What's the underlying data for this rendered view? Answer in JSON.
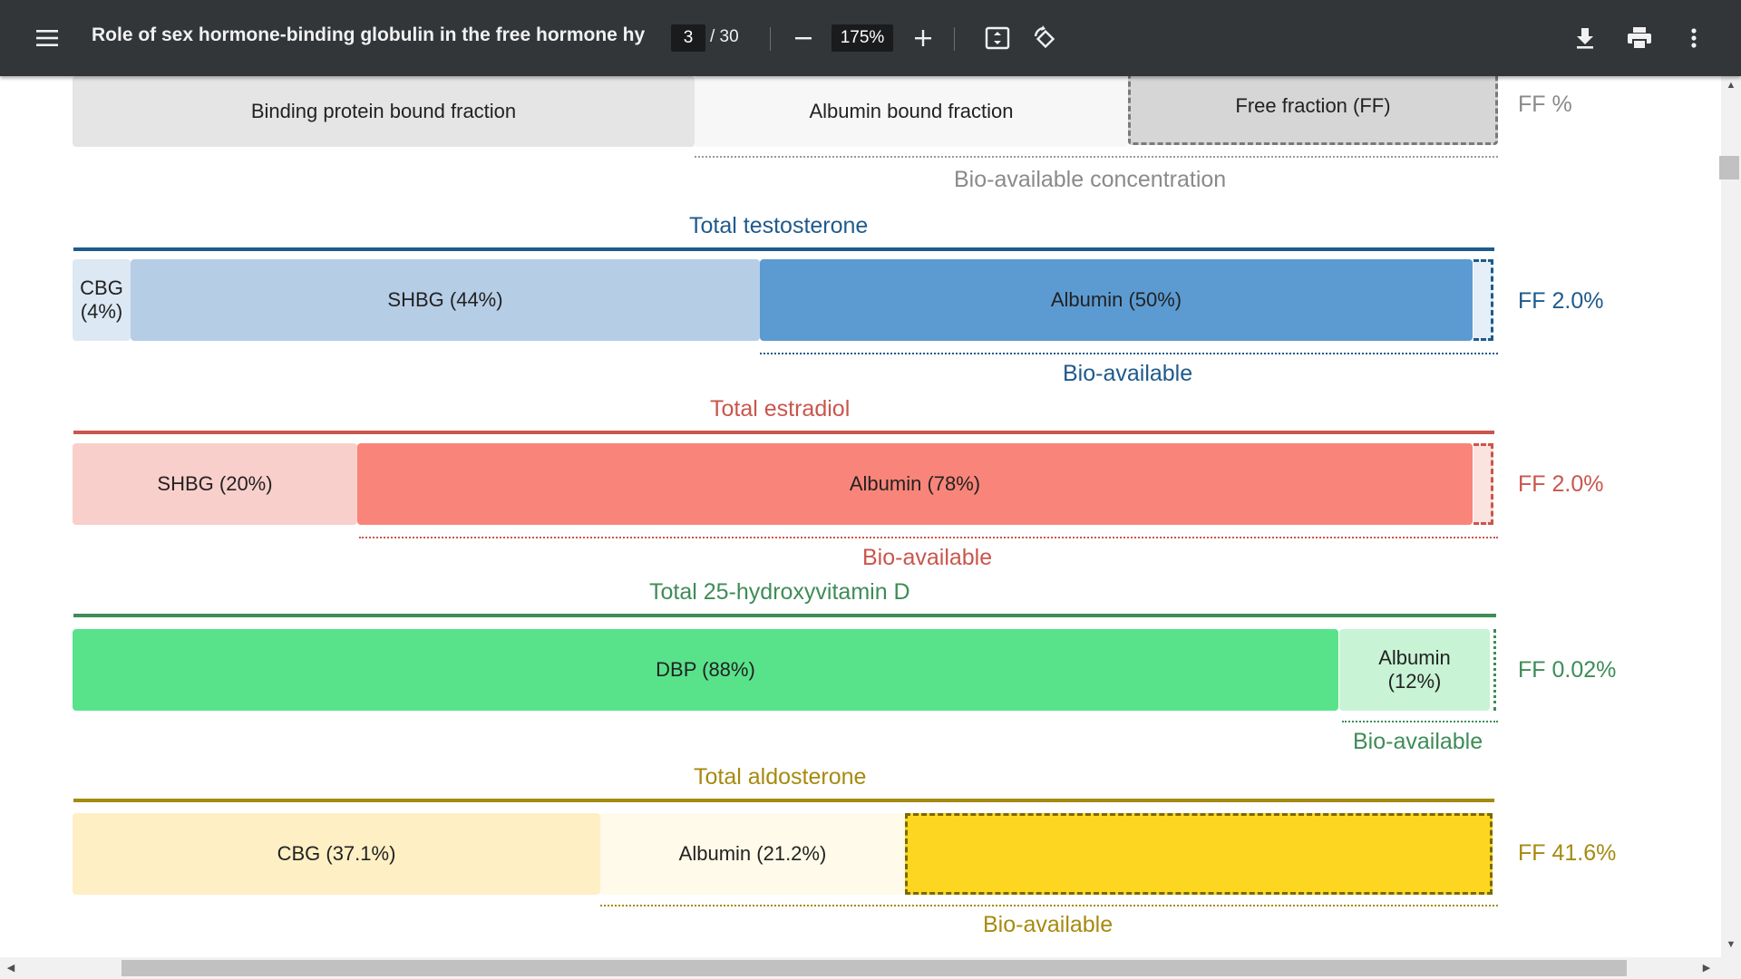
{
  "toolbar": {
    "title": "Role of sex hormone-binding globulin in the free hormone hypo...",
    "page_current": "3",
    "page_total": "/ 30",
    "zoom": "175%",
    "icons": {
      "menu": "menu-icon",
      "zoom_out": "minus-icon",
      "zoom_in": "plus-icon",
      "fit": "fit-page-icon",
      "rotate": "rotate-icon",
      "download": "download-icon",
      "print": "print-icon",
      "more": "more-vert-icon"
    }
  },
  "legend": {
    "binding_protein": "Binding protein bound fraction",
    "albumin": "Albumin bound fraction",
    "free": "Free fraction (FF)",
    "ff_label": "FF %",
    "bioavailable_conc": "Bio-available concentration"
  },
  "testosterone": {
    "title": "Total testosterone",
    "cbg": "CBG\n(4%)",
    "shbg": "SHBG (44%)",
    "albumin": "Albumin (50%)",
    "ff": "FF 2.0%",
    "bio": "Bio-available",
    "color": "#1f5a8c"
  },
  "estradiol": {
    "title": "Total estradiol",
    "shbg": "SHBG (20%)",
    "albumin": "Albumin (78%)",
    "ff": "FF 2.0%",
    "bio": "Bio-available",
    "color": "#c9564c"
  },
  "vitamin_d": {
    "title": "Total 25-hydroxyvitamin D",
    "dbp": "DBP (88%)",
    "albumin": "Albumin\n(12%)",
    "ff": "FF 0.02%",
    "bio": "Bio-available",
    "color": "#3e8c57"
  },
  "aldosterone": {
    "title": "Total aldosterone",
    "cbg": "CBG (37.1%)",
    "albumin": "Albumin (21.2%)",
    "ff": "FF 41.6%",
    "bio": "Bio-available",
    "color": "#a68a10"
  }
}
